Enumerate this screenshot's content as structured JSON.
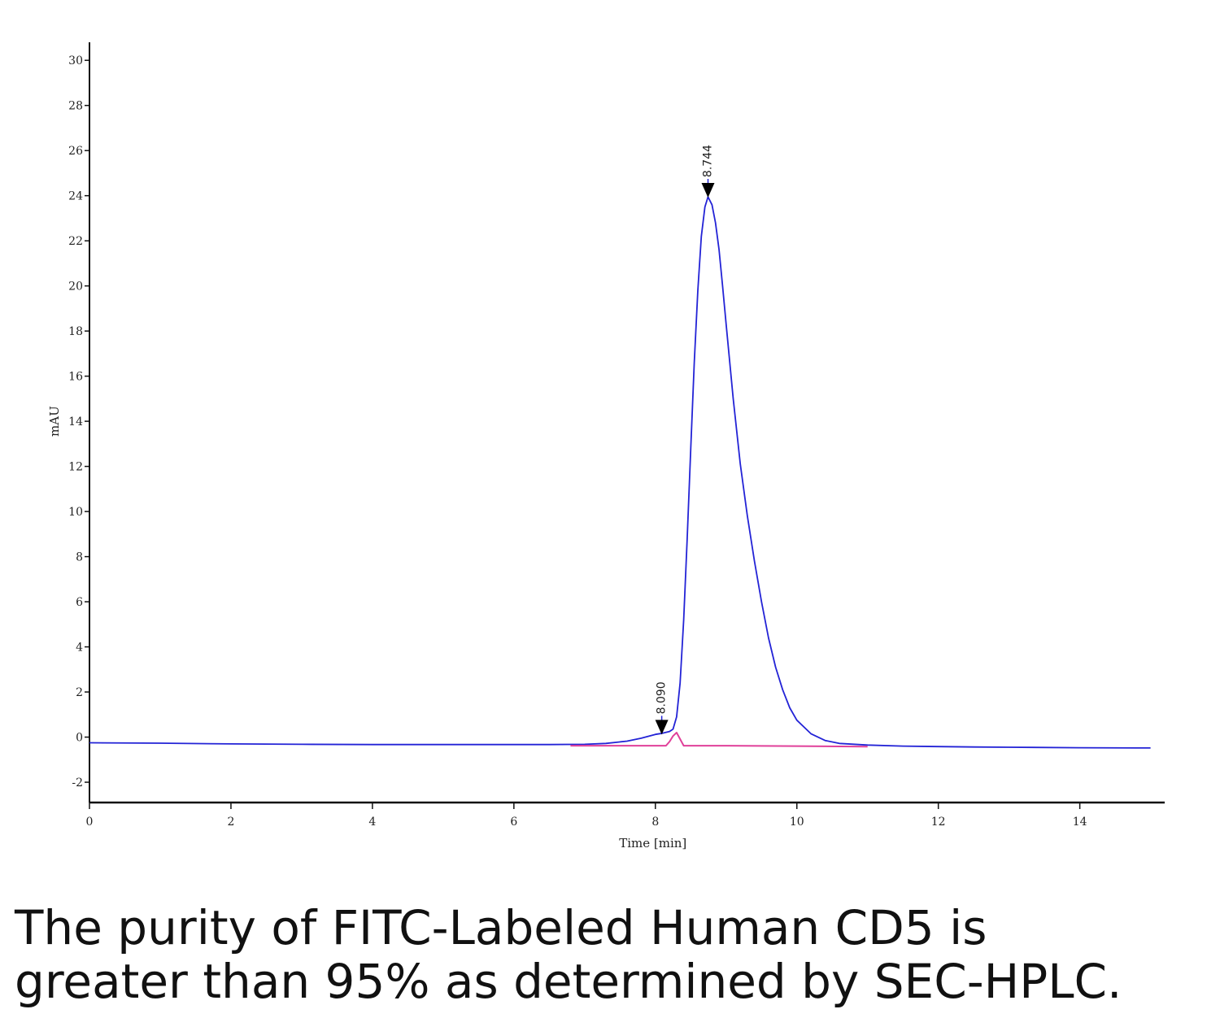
{
  "chart_data": {
    "type": "line",
    "title": "",
    "xlabel": "Time [min]",
    "ylabel": "mAU",
    "xlim": [
      0,
      15.2
    ],
    "ylim": [
      -2.9,
      30.8
    ],
    "x_ticks": [
      0,
      2,
      4,
      6,
      8,
      10,
      12,
      14
    ],
    "y_ticks": [
      -2,
      0,
      2,
      4,
      6,
      8,
      10,
      12,
      14,
      16,
      18,
      20,
      22,
      24,
      26,
      28,
      30
    ],
    "grid": false,
    "colors": {
      "signal": "#2323d6",
      "baseline": "#e0409a",
      "marker": "#000000"
    },
    "series": [
      {
        "role": "signal",
        "x": [
          0,
          1,
          2,
          3,
          4,
          5,
          6,
          6.5,
          7,
          7.3,
          7.6,
          7.8,
          8.0,
          8.1,
          8.2,
          8.25,
          8.3,
          8.35,
          8.4,
          8.45,
          8.5,
          8.55,
          8.6,
          8.65,
          8.7,
          8.744,
          8.8,
          8.85,
          8.9,
          8.95,
          9.0,
          9.1,
          9.2,
          9.3,
          9.4,
          9.5,
          9.6,
          9.7,
          9.8,
          9.9,
          10.0,
          10.2,
          10.4,
          10.6,
          11.0,
          11.5,
          12.0,
          12.5,
          13.0,
          14.0,
          15.0
        ],
        "y": [
          -0.25,
          -0.27,
          -0.3,
          -0.32,
          -0.33,
          -0.33,
          -0.33,
          -0.33,
          -0.32,
          -0.28,
          -0.18,
          -0.05,
          0.12,
          0.17,
          0.25,
          0.35,
          0.9,
          2.4,
          5.2,
          8.8,
          12.8,
          16.6,
          19.8,
          22.2,
          23.5,
          23.95,
          23.6,
          22.8,
          21.6,
          20.0,
          18.3,
          15.0,
          12.1,
          9.8,
          7.8,
          6.0,
          4.4,
          3.1,
          2.1,
          1.3,
          0.75,
          0.15,
          -0.15,
          -0.28,
          -0.35,
          -0.4,
          -0.42,
          -0.44,
          -0.45,
          -0.47,
          -0.48
        ]
      },
      {
        "role": "baseline",
        "x": [
          6.8,
          7.5,
          8.0,
          8.15,
          8.2,
          8.25,
          8.3,
          8.4,
          9.0,
          10.0,
          11.0
        ],
        "y": [
          -0.38,
          -0.38,
          -0.38,
          -0.38,
          -0.2,
          0.05,
          0.2,
          -0.38,
          -0.38,
          -0.4,
          -0.42
        ]
      }
    ],
    "peaks": [
      {
        "label": "8.090",
        "x": 8.09,
        "y": 0.15
      },
      {
        "label": "8.744",
        "x": 8.744,
        "y": 23.95
      }
    ]
  },
  "caption": {
    "line1": "The purity of FITC-Labeled Human CD5 is",
    "line2": "greater than 95% as determined by SEC-HPLC."
  }
}
